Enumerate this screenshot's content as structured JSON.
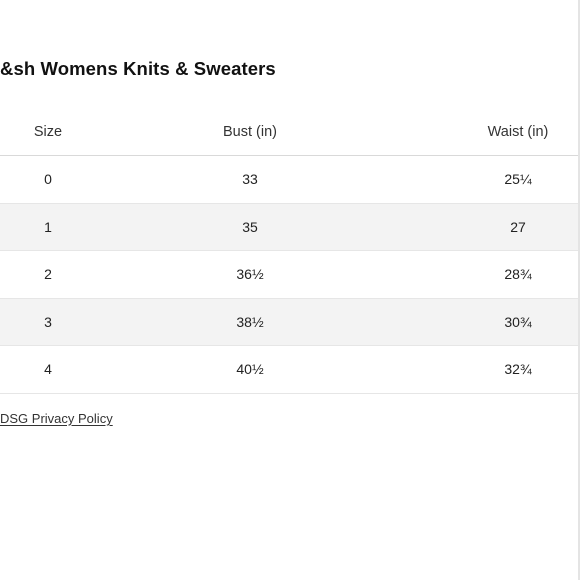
{
  "page_title": "&sh Womens Knits & Sweaters",
  "table": {
    "headers": {
      "size": "Size",
      "bust": "Bust (in)",
      "waist": "Waist (in)"
    },
    "rows": [
      {
        "size": "0",
        "bust": "33",
        "waist": "25¼"
      },
      {
        "size": "1",
        "bust": "35",
        "waist": "27"
      },
      {
        "size": "2",
        "bust": "36½",
        "waist": "28¾"
      },
      {
        "size": "3",
        "bust": "38½",
        "waist": "30¾"
      },
      {
        "size": "4",
        "bust": "40½",
        "waist": "32¾"
      }
    ]
  },
  "footer": {
    "privacy_link": "DSG Privacy Policy"
  }
}
